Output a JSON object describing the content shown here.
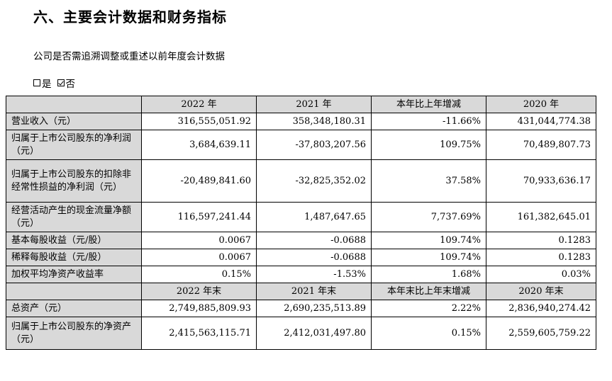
{
  "heading": "六、主要会计数据和财务指标",
  "question": "公司是否需追溯调整或重述以前年度会计数据",
  "options": [
    {
      "label": "是",
      "checked": false
    },
    {
      "label": "否",
      "checked": true
    }
  ],
  "table": {
    "header1": [
      "",
      "2022 年",
      "2021 年",
      "本年比上年增减",
      "2020 年"
    ],
    "rows1": [
      {
        "label": "营业收入（元）",
        "values": [
          "316,555,051.92",
          "358,348,180.31",
          "-11.66%",
          "431,044,774.38"
        ]
      },
      {
        "label": "归属于上市公司股东的净利润（元）",
        "values": [
          "3,684,639.11",
          "-37,803,207.56",
          "109.75%",
          "70,489,807.73"
        ]
      },
      {
        "label": "归属于上市公司股东的扣除非经常性损益的净利润（元）",
        "values": [
          "-20,489,841.60",
          "-32,825,352.02",
          "37.58%",
          "70,933,636.17"
        ]
      },
      {
        "label": "经营活动产生的现金流量净额（元）",
        "values": [
          "116,597,241.44",
          "1,487,647.65",
          "7,737.69%",
          "161,382,645.01"
        ]
      },
      {
        "label": "基本每股收益（元/股）",
        "values": [
          "0.0067",
          "-0.0688",
          "109.74%",
          "0.1283"
        ]
      },
      {
        "label": "稀释每股收益（元/股）",
        "values": [
          "0.0067",
          "-0.0688",
          "109.74%",
          "0.1283"
        ]
      },
      {
        "label": "加权平均净资产收益率",
        "values": [
          "0.15%",
          "-1.53%",
          "1.68%",
          "0.03%"
        ]
      }
    ],
    "header2": [
      "",
      "2022 年末",
      "2021 年末",
      "本年末比上年末增减",
      "2020 年末"
    ],
    "rows2": [
      {
        "label": "总资产（元）",
        "values": [
          "2,749,885,809.93",
          "2,690,235,513.89",
          "2.22%",
          "2,836,940,274.42"
        ]
      },
      {
        "label": "归属于上市公司股东的净资产（元）",
        "values": [
          "2,415,563,115.71",
          "2,412,031,497.80",
          "0.15%",
          "2,559,605,759.22"
        ]
      }
    ]
  }
}
